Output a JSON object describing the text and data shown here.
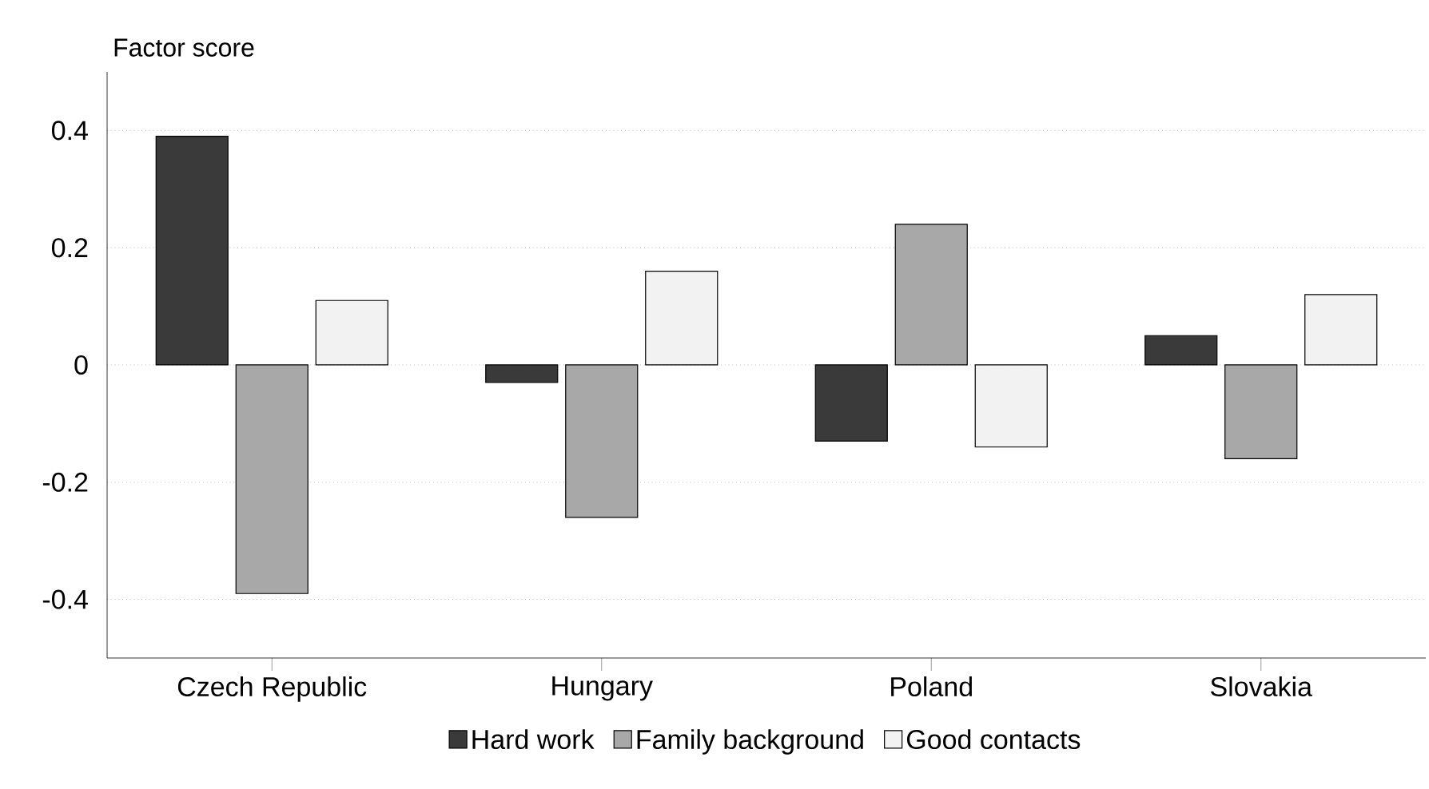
{
  "chart_data": {
    "type": "bar",
    "ylabel": "Factor score",
    "categories": [
      "Czech Republic",
      "Hungary",
      "Poland",
      "Slovakia"
    ],
    "series": [
      {
        "name": "Hard work",
        "color": "#3a3a3a",
        "values": [
          0.39,
          -0.03,
          -0.13,
          0.05
        ]
      },
      {
        "name": "Family background",
        "color": "#a8a8a8",
        "values": [
          -0.39,
          -0.26,
          0.24,
          -0.16
        ]
      },
      {
        "name": "Good contacts",
        "color": "#f2f2f2",
        "values": [
          0.11,
          0.16,
          -0.14,
          0.12
        ]
      }
    ],
    "ylim": [
      -0.5,
      0.5
    ],
    "yticks": [
      {
        "value": -0.4,
        "label": "-0.4"
      },
      {
        "value": -0.2,
        "label": "-0.2"
      },
      0,
      {
        "value": 0.2,
        "label": "0.2"
      },
      {
        "value": 0.4,
        "label": "0.4"
      }
    ],
    "grid": "y",
    "legend": "bottom"
  }
}
